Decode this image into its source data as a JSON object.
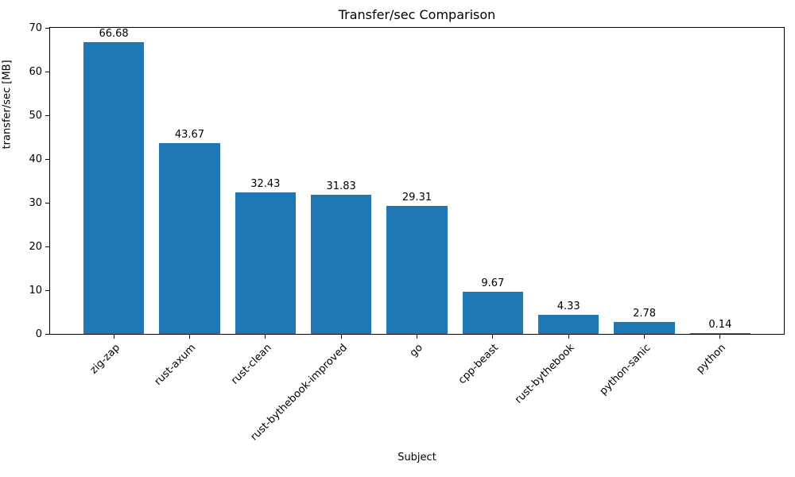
{
  "chart_data": {
    "type": "bar",
    "title": "Transfer/sec Comparison",
    "xlabel": "Subject",
    "ylabel": "transfer/sec [MB]",
    "categories": [
      "zig-zap",
      "rust-axum",
      "rust-clean",
      "rust-bythebook-improved",
      "go",
      "cpp-beast",
      "rust-bythebook",
      "python-sanic",
      "python"
    ],
    "values": [
      66.68,
      43.67,
      32.43,
      31.83,
      29.31,
      9.67,
      4.33,
      2.78,
      0.14
    ],
    "bar_labels": [
      "66.68",
      "43.67",
      "32.43",
      "31.83",
      "29.31",
      "9.67",
      "4.33",
      "2.78",
      "0.14"
    ],
    "ylim": [
      0,
      70
    ],
    "yticks": [
      0,
      10,
      20,
      30,
      40,
      50,
      60,
      70
    ],
    "bar_color": "#1f77b4",
    "grid": false,
    "legend": null,
    "x_tick_rotation": 45
  }
}
